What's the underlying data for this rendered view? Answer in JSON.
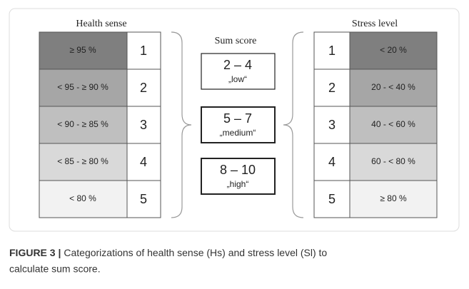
{
  "health_sense": {
    "title": "Health sense",
    "rows": [
      {
        "range": "≥ 95 %",
        "score": "1"
      },
      {
        "range": "< 95 - ≥ 90 %",
        "score": "2"
      },
      {
        "range": "< 90 - ≥ 85 %",
        "score": "3"
      },
      {
        "range": "< 85 - ≥ 80 %",
        "score": "4"
      },
      {
        "range": "< 80 %",
        "score": "5"
      }
    ]
  },
  "sum_score": {
    "title": "Sum score",
    "groups": [
      {
        "range": "2 – 4",
        "label": "„low“"
      },
      {
        "range": "5 – 7",
        "label": "„medium“"
      },
      {
        "range": "8 – 10",
        "label": "„high“"
      }
    ]
  },
  "stress_level": {
    "title": "Stress level",
    "rows": [
      {
        "score": "1",
        "range": "< 20 %"
      },
      {
        "score": "2",
        "range": "20 - < 40 %"
      },
      {
        "score": "3",
        "range": "40 - < 60 %"
      },
      {
        "score": "4",
        "range": "60 - < 80 %"
      },
      {
        "score": "5",
        "range": "≥ 80 %"
      }
    ]
  },
  "caption": {
    "label": "FIGURE 3 |",
    "text": "Categorizations of health sense (Hs) and stress level (Sl) to",
    "text2": "calculate sum score."
  }
}
